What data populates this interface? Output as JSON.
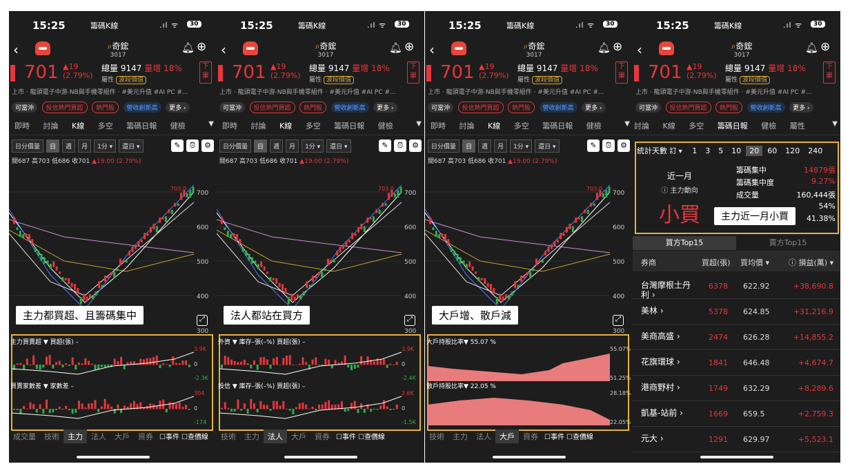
{
  "status": {
    "time": "15:25",
    "app": "籌碼K線",
    "battery": "30"
  },
  "stock": {
    "name": "奇鋐",
    "code": "3017",
    "price": "701",
    "change": "▲19",
    "change_pct": "(2.79%)",
    "total_vol_label": "總量",
    "total_vol": "9147",
    "vol_label": "量增",
    "vol_pct": "18%",
    "attr_label": "屬性",
    "wave_label": "波段價值",
    "order_label": "下單"
  },
  "tags": "上市 · 龍頭電子中游-NB與手機零組件 · #美元升值 #AI PC #...",
  "pills": [
    "可當沖",
    "投信熱門買超",
    "熱門股",
    "營收創新高",
    "更多 ›"
  ],
  "tabs": [
    "即時",
    "討論",
    "K線",
    "多空",
    "籌碼日報",
    "健檢"
  ],
  "tabs4": [
    "討論",
    "K線",
    "多空",
    "籌碼日報",
    "健檢",
    "屬性",
    "研"
  ],
  "controls": [
    "日分價量",
    "日",
    "週",
    "月",
    "1分 ▾",
    "還日 ▾"
  ],
  "ohlc": {
    "text": "開687 高703 低686 收701",
    "chg": "▲19.00 (2.79%)"
  },
  "yaxis": [
    "700",
    "600",
    "500",
    "400",
    "300"
  ],
  "high_label": "703.0",
  "panels": [
    {
      "annot": "主力都買超、且籌碼集中",
      "sub1": "主力買賣超 ▼  買超(張) –",
      "sub2": "買賣家數差 ▼  家數差 –",
      "s1": [
        "3.9K",
        "0",
        "-2.3K"
      ],
      "s2": [
        "304",
        "0",
        "-174"
      ],
      "active": "主力"
    },
    {
      "annot": "法人都站在買方",
      "sub1": "外資  ▼  庫存–張(–%)  買超(張) –",
      "sub2": "投信  ▼  庫存–張(–%)  買超(張) –",
      "s1": [
        "3.9K",
        "0",
        "-2.4K"
      ],
      "s2": [
        "2.6K",
        "0",
        "-1.5K"
      ],
      "active": "法人"
    },
    {
      "annot": "大戶增、散戶減",
      "sub1": "大戶持股比率▼  55.07 %",
      "sub2": "散戶持股比率▼  22.05 %",
      "s1": [
        "55.07%",
        "51.25%"
      ],
      "s2": [
        "28.18%",
        "22.05%"
      ],
      "active": "大戶"
    }
  ],
  "bottom_tabs": [
    "成交量",
    "技術",
    "主力",
    "法人",
    "大戶",
    "資券"
  ],
  "checks": [
    "事件",
    "查價線"
  ],
  "panel4": {
    "days_label": "統計天數",
    "days_opt": "訂 ▾",
    "days": [
      "1",
      "3",
      "5",
      "10",
      "20",
      "60",
      "120",
      "240"
    ],
    "period": "近一月",
    "direction_label": "ⓘ 主力動向",
    "verdict": "小買",
    "annot": "主力近一月小買",
    "stats": [
      {
        "k": "籌碼集中",
        "v": "14879張",
        "red": true
      },
      {
        "k": "籌碼集中度",
        "v": "9.27%",
        "red": true
      },
      {
        "k": "成交量",
        "v": "160,444張",
        "red": false
      },
      {
        "k": "",
        "v": "54%",
        "red": false
      },
      {
        "k": "籌碼週轉率",
        "v": "41.38%",
        "red": false
      }
    ],
    "toptabs": [
      "買方Top15",
      "賣方Top15"
    ],
    "headers": [
      "券商",
      "買超(張)",
      "買均價 ▾",
      "ⓘ 損益(萬) ▾"
    ],
    "rows": [
      {
        "broker": "台灣摩根士丹利",
        "buy": "6378",
        "avg": "622.92",
        "pl": "+38,690.8"
      },
      {
        "broker": "美林",
        "buy": "5378",
        "avg": "624.85",
        "pl": "+31,216.9"
      },
      {
        "broker": "美商高盛",
        "buy": "2474",
        "avg": "626.28",
        "pl": "+14,855.2"
      },
      {
        "broker": "花旗環球",
        "buy": "1841",
        "avg": "646.48",
        "pl": "+4,674.7"
      },
      {
        "broker": "港商野村",
        "buy": "1749",
        "avg": "632.29",
        "pl": "+8,289.6"
      },
      {
        "broker": "凱基-站前",
        "buy": "1669",
        "avg": "659.5",
        "pl": "+2,759.3"
      },
      {
        "broker": "元大",
        "buy": "1291",
        "avg": "629.97",
        "pl": "+5,523.1"
      }
    ]
  },
  "colors": {
    "up": "#e8363b",
    "down": "#2fae4a",
    "accent": "#e6b33a",
    "bg": "#1d1d1d"
  }
}
